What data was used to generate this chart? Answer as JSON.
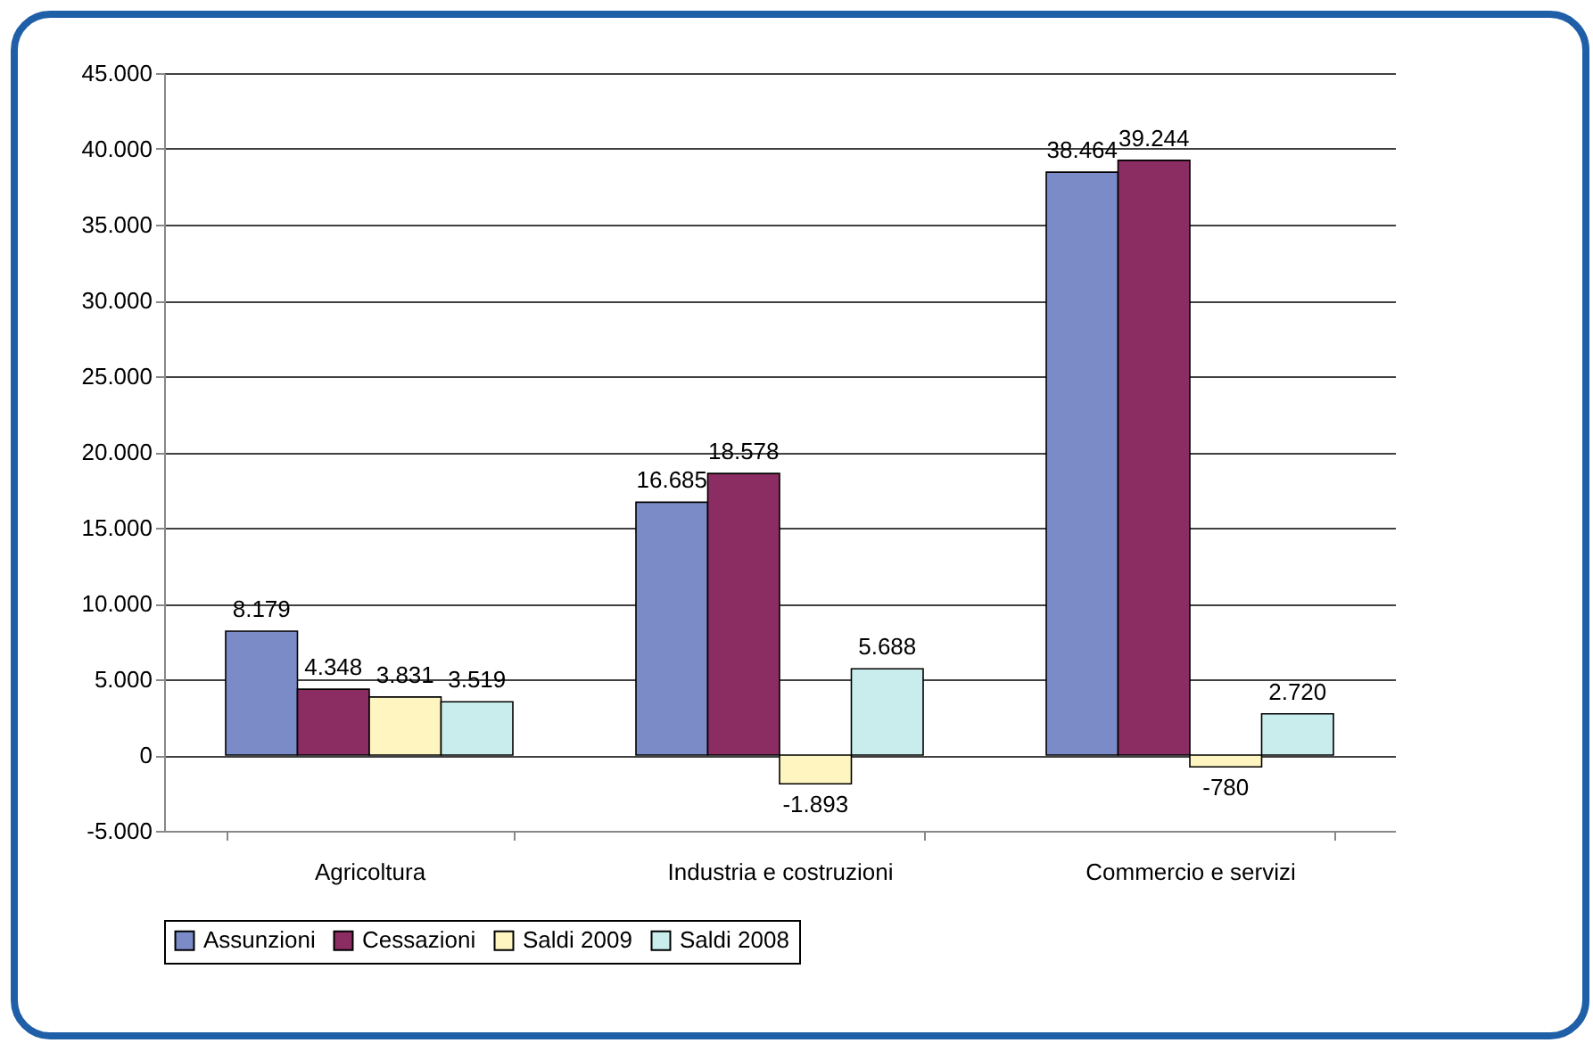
{
  "chart_data": {
    "type": "bar",
    "categories": [
      "Agricoltura",
      "Industria e costruzioni",
      "Commercio e servizi"
    ],
    "series": [
      {
        "name": "Assunzioni",
        "color": "#7b8bc8",
        "values": [
          8179,
          16685,
          38464
        ],
        "value_labels": [
          "8.179",
          "16.685",
          "38.464"
        ]
      },
      {
        "name": "Cessazioni",
        "color": "#8b2d62",
        "values": [
          4348,
          18578,
          39244
        ],
        "value_labels": [
          "4.348",
          "18.578",
          "39.244"
        ]
      },
      {
        "name": "Saldi 2009",
        "color": "#fff5c0",
        "values": [
          3831,
          -1893,
          -780
        ],
        "value_labels": [
          "3.831",
          "-1.893",
          "-780"
        ]
      },
      {
        "name": "Saldi 2008",
        "color": "#c9ecec",
        "values": [
          3519,
          5688,
          2720
        ],
        "value_labels": [
          "3.519",
          "5.688",
          "2.720"
        ]
      }
    ],
    "ylim": [
      -5000,
      45000
    ],
    "yticks": [
      {
        "value": -5000,
        "label": "-5.000"
      },
      {
        "value": 0,
        "label": "0"
      },
      {
        "value": 5000,
        "label": "5.000"
      },
      {
        "value": 10000,
        "label": "10.000"
      },
      {
        "value": 15000,
        "label": "15.000"
      },
      {
        "value": 20000,
        "label": "20.000"
      },
      {
        "value": 25000,
        "label": "25.000"
      },
      {
        "value": 30000,
        "label": "30.000"
      },
      {
        "value": 35000,
        "label": "35.000"
      },
      {
        "value": 40000,
        "label": "40.000"
      },
      {
        "value": 45000,
        "label": "45.000"
      }
    ],
    "grid": "y",
    "legend": "bottom"
  }
}
